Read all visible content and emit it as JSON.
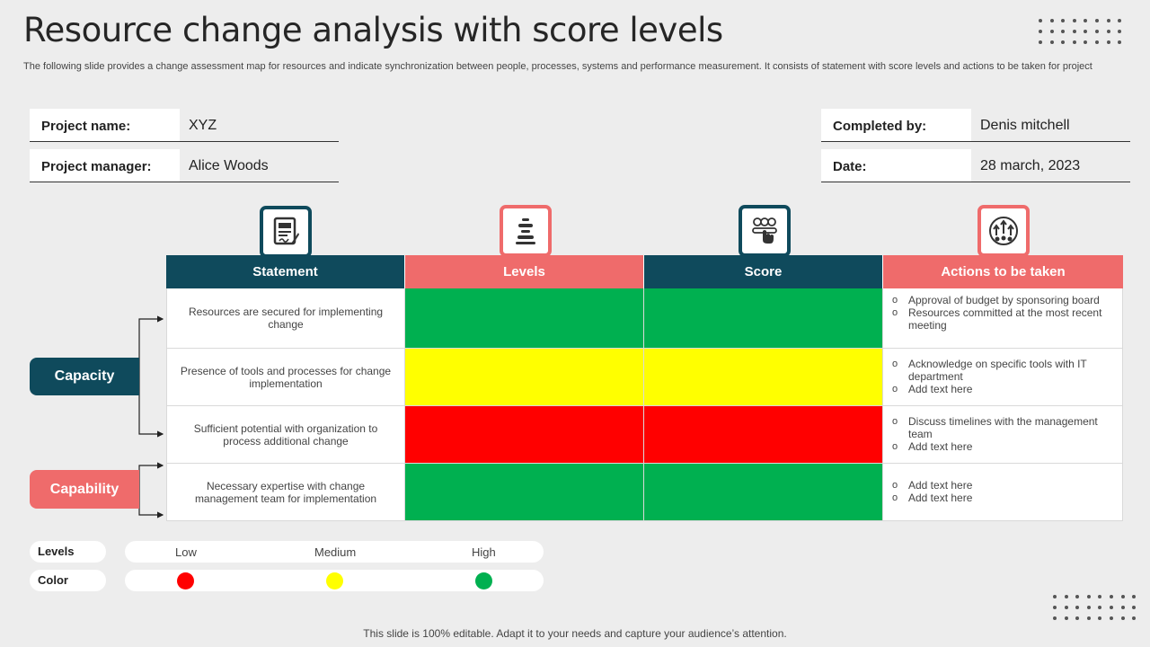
{
  "title": "Resource change analysis with score levels",
  "subtitle": "The following slide provides a change assessment map for resources and indicate synchronization between people, processes, systems and performance measurement. It consists of statement with score levels and actions to be taken for project",
  "info": {
    "project_name_label": "Project name:",
    "project_name": "XYZ",
    "project_manager_label": "Project manager:",
    "project_manager": "Alice Woods",
    "completed_by_label": "Completed by:",
    "completed_by": "Denis mitchell",
    "date_label": "Date:",
    "date": "28 march, 2023"
  },
  "table": {
    "headers": [
      "Statement",
      "Levels",
      "Score",
      "Actions to be taken"
    ],
    "rows": [
      {
        "statement": "Resources are secured for implementing change",
        "level": "high",
        "score": "high",
        "actions": [
          "Approval of budget by sponsoring board",
          "Resources committed at the most recent meeting"
        ]
      },
      {
        "statement": "Presence of tools and processes for change implementation",
        "level": "medium",
        "score": "medium",
        "actions": [
          "Acknowledge on specific tools with IT department",
          "Add text here"
        ]
      },
      {
        "statement": "Sufficient potential with organization to process additional change",
        "level": "low",
        "score": "low",
        "actions": [
          "Discuss timelines with the management team",
          "Add text here"
        ]
      },
      {
        "statement": "Necessary expertise with change management team for implementation",
        "level": "high",
        "score": "high",
        "actions": [
          "Add text here",
          "Add text here"
        ]
      }
    ]
  },
  "categories": {
    "capacity": "Capacity",
    "capability": "Capability"
  },
  "legend": {
    "levels_label": "Levels",
    "color_label": "Color",
    "low": "Low",
    "medium": "Medium",
    "high": "High"
  },
  "colors": {
    "navy": "#0f4a5c",
    "coral": "#ef6b6b",
    "high": "#00b050",
    "medium": "#ffff00",
    "low": "#ff0000"
  },
  "icons": [
    "document-signature-icon",
    "stacked-levels-icon",
    "score-rating-icon",
    "growth-network-icon"
  ],
  "footer": "This slide is 100% editable. Adapt it to your needs and capture your audience’s attention."
}
